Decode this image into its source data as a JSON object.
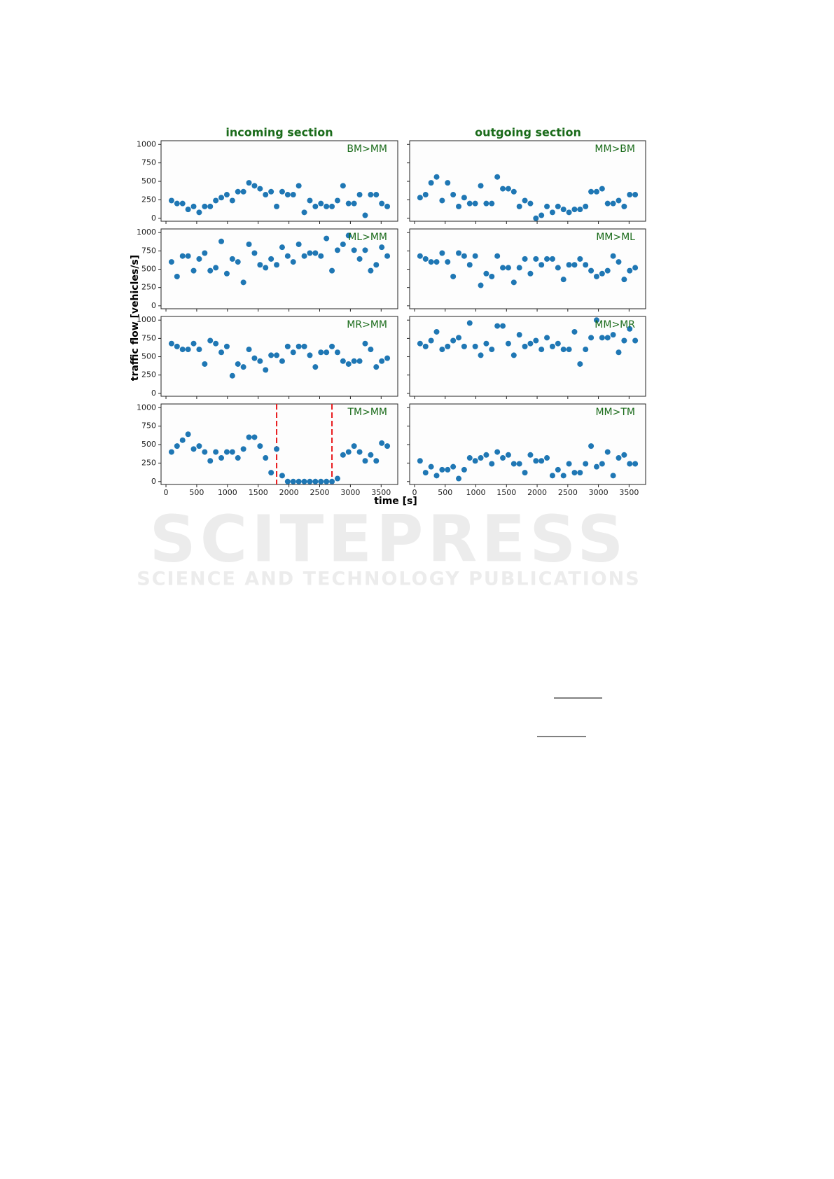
{
  "figure": {
    "title_left": "incoming section",
    "title_right": "outgoing section",
    "ylabel": "traffic flow [vehicles/s]",
    "xlabel": "time [s]",
    "title_color": "#1a6b1a"
  },
  "watermark": {
    "line1": "SCITEPRESS",
    "line2": "SCIENCE AND TECHNOLOGY PUBLICATIONS"
  },
  "chart_data": [
    {
      "type": "scatter",
      "label": "BM>MM",
      "color": "#1f77b4",
      "xlim": [
        -80,
        3770
      ],
      "ylim": [
        -40,
        1050
      ],
      "xticks": [
        0,
        500,
        1000,
        1500,
        2000,
        2500,
        3000,
        3500
      ],
      "yticks": [
        0,
        250,
        500,
        750,
        1000
      ],
      "xtick_labels": false,
      "ytick_labels": true,
      "x": [
        90,
        180,
        270,
        360,
        450,
        540,
        630,
        720,
        810,
        900,
        990,
        1080,
        1170,
        1260,
        1350,
        1440,
        1530,
        1620,
        1710,
        1800,
        1890,
        1980,
        2070,
        2160,
        2250,
        2340,
        2430,
        2520,
        2610,
        2700,
        2790,
        2880,
        2970,
        3060,
        3150,
        3240,
        3330,
        3420,
        3510,
        3600
      ],
      "values": [
        240,
        200,
        200,
        120,
        160,
        80,
        160,
        160,
        240,
        280,
        320,
        240,
        360,
        360,
        480,
        440,
        400,
        320,
        360,
        160,
        360,
        320,
        320,
        440,
        80,
        240,
        160,
        200,
        160,
        160,
        240,
        440,
        200,
        200,
        320,
        40,
        320,
        320,
        200,
        160
      ]
    },
    {
      "type": "scatter",
      "label": "MM>BM",
      "color": "#1f77b4",
      "xlim": [
        -80,
        3770
      ],
      "ylim": [
        -40,
        1050
      ],
      "xticks": [
        0,
        500,
        1000,
        1500,
        2000,
        2500,
        3000,
        3500
      ],
      "yticks": [
        0,
        250,
        500,
        750,
        1000
      ],
      "xtick_labels": false,
      "ytick_labels": false,
      "x": [
        90,
        180,
        270,
        360,
        450,
        540,
        630,
        720,
        810,
        900,
        990,
        1080,
        1170,
        1260,
        1350,
        1440,
        1530,
        1620,
        1710,
        1800,
        1890,
        1980,
        2070,
        2160,
        2250,
        2340,
        2430,
        2520,
        2610,
        2700,
        2790,
        2880,
        2970,
        3060,
        3150,
        3240,
        3330,
        3420,
        3510,
        3600
      ],
      "values": [
        280,
        320,
        480,
        560,
        240,
        480,
        320,
        160,
        280,
        200,
        200,
        440,
        200,
        200,
        560,
        400,
        400,
        360,
        160,
        240,
        200,
        0,
        40,
        160,
        80,
        160,
        120,
        80,
        120,
        120,
        160,
        360,
        360,
        400,
        200,
        200,
        240,
        160,
        320,
        320
      ]
    },
    {
      "type": "scatter",
      "label": "ML>MM",
      "color": "#1f77b4",
      "xlim": [
        -80,
        3770
      ],
      "ylim": [
        -40,
        1050
      ],
      "xticks": [
        0,
        500,
        1000,
        1500,
        2000,
        2500,
        3000,
        3500
      ],
      "yticks": [
        0,
        250,
        500,
        750,
        1000
      ],
      "xtick_labels": false,
      "ytick_labels": true,
      "x": [
        90,
        180,
        270,
        360,
        450,
        540,
        630,
        720,
        810,
        900,
        990,
        1080,
        1170,
        1260,
        1350,
        1440,
        1530,
        1620,
        1710,
        1800,
        1890,
        1980,
        2070,
        2160,
        2250,
        2340,
        2430,
        2520,
        2610,
        2700,
        2790,
        2880,
        2970,
        3060,
        3150,
        3240,
        3330,
        3420,
        3510,
        3600
      ],
      "values": [
        600,
        400,
        680,
        680,
        480,
        640,
        720,
        480,
        520,
        880,
        440,
        640,
        600,
        320,
        840,
        720,
        560,
        520,
        640,
        560,
        800,
        680,
        600,
        840,
        680,
        720,
        720,
        680,
        920,
        480,
        760,
        840,
        960,
        760,
        640,
        760,
        480,
        560,
        800,
        680
      ]
    },
    {
      "type": "scatter",
      "label": "MM>ML",
      "color": "#1f77b4",
      "xlim": [
        -80,
        3770
      ],
      "ylim": [
        -40,
        1050
      ],
      "xticks": [
        0,
        500,
        1000,
        1500,
        2000,
        2500,
        3000,
        3500
      ],
      "yticks": [
        0,
        250,
        500,
        750,
        1000
      ],
      "xtick_labels": false,
      "ytick_labels": false,
      "x": [
        90,
        180,
        270,
        360,
        450,
        540,
        630,
        720,
        810,
        900,
        990,
        1080,
        1170,
        1260,
        1350,
        1440,
        1530,
        1620,
        1710,
        1800,
        1890,
        1980,
        2070,
        2160,
        2250,
        2340,
        2430,
        2520,
        2610,
        2700,
        2790,
        2880,
        2970,
        3060,
        3150,
        3240,
        3330,
        3420,
        3510,
        3600
      ],
      "values": [
        680,
        640,
        600,
        600,
        720,
        600,
        400,
        720,
        680,
        560,
        680,
        280,
        440,
        400,
        680,
        520,
        520,
        320,
        520,
        640,
        440,
        640,
        560,
        640,
        640,
        520,
        360,
        560,
        560,
        640,
        560,
        480,
        400,
        440,
        480,
        680,
        600,
        360,
        480,
        520
      ]
    },
    {
      "type": "scatter",
      "label": "MR>MM",
      "color": "#1f77b4",
      "xlim": [
        -80,
        3770
      ],
      "ylim": [
        -40,
        1050
      ],
      "xticks": [
        0,
        500,
        1000,
        1500,
        2000,
        2500,
        3000,
        3500
      ],
      "yticks": [
        0,
        250,
        500,
        750,
        1000
      ],
      "xtick_labels": false,
      "ytick_labels": true,
      "x": [
        90,
        180,
        270,
        360,
        450,
        540,
        630,
        720,
        810,
        900,
        990,
        1080,
        1170,
        1260,
        1350,
        1440,
        1530,
        1620,
        1710,
        1800,
        1890,
        1980,
        2070,
        2160,
        2250,
        2340,
        2430,
        2520,
        2610,
        2700,
        2790,
        2880,
        2970,
        3060,
        3150,
        3240,
        3330,
        3420,
        3510,
        3600
      ],
      "values": [
        680,
        640,
        600,
        600,
        680,
        600,
        400,
        720,
        680,
        560,
        640,
        240,
        400,
        360,
        600,
        480,
        440,
        320,
        520,
        520,
        440,
        640,
        560,
        640,
        640,
        520,
        360,
        560,
        560,
        640,
        560,
        440,
        400,
        440,
        440,
        680,
        600,
        360,
        440,
        480
      ]
    },
    {
      "type": "scatter",
      "label": "MM>MR",
      "color": "#1f77b4",
      "xlim": [
        -80,
        3770
      ],
      "ylim": [
        -40,
        1050
      ],
      "xticks": [
        0,
        500,
        1000,
        1500,
        2000,
        2500,
        3000,
        3500
      ],
      "yticks": [
        0,
        250,
        500,
        750,
        1000
      ],
      "xtick_labels": false,
      "ytick_labels": false,
      "x": [
        90,
        180,
        270,
        360,
        450,
        540,
        630,
        720,
        810,
        900,
        990,
        1080,
        1170,
        1260,
        1350,
        1440,
        1530,
        1620,
        1710,
        1800,
        1890,
        1980,
        2070,
        2160,
        2250,
        2340,
        2430,
        2520,
        2610,
        2700,
        2790,
        2880,
        2970,
        3060,
        3150,
        3240,
        3330,
        3420,
        3510,
        3600
      ],
      "values": [
        680,
        640,
        720,
        840,
        600,
        640,
        720,
        760,
        640,
        960,
        640,
        520,
        680,
        600,
        920,
        920,
        680,
        520,
        800,
        640,
        680,
        720,
        600,
        760,
        640,
        680,
        600,
        600,
        840,
        400,
        600,
        760,
        1000,
        760,
        760,
        800,
        560,
        720,
        880,
        720
      ]
    },
    {
      "type": "scatter",
      "label": "TM>MM",
      "color": "#1f77b4",
      "xlim": [
        -80,
        3770
      ],
      "ylim": [
        -40,
        1050
      ],
      "xticks": [
        0,
        500,
        1000,
        1500,
        2000,
        2500,
        3000,
        3500
      ],
      "yticks": [
        0,
        250,
        500,
        750,
        1000
      ],
      "xtick_labels": true,
      "ytick_labels": true,
      "vlines": [
        1800,
        2700
      ],
      "vline_color": "#e8191c",
      "x": [
        90,
        180,
        270,
        360,
        450,
        540,
        630,
        720,
        810,
        900,
        990,
        1080,
        1170,
        1260,
        1350,
        1440,
        1530,
        1620,
        1710,
        1800,
        1890,
        1980,
        2070,
        2160,
        2250,
        2340,
        2430,
        2520,
        2610,
        2700,
        2790,
        2880,
        2970,
        3060,
        3150,
        3240,
        3330,
        3420,
        3510,
        3600
      ],
      "values": [
        400,
        480,
        560,
        640,
        440,
        480,
        400,
        280,
        400,
        320,
        400,
        400,
        320,
        440,
        600,
        600,
        480,
        320,
        120,
        440,
        80,
        0,
        0,
        0,
        0,
        0,
        0,
        0,
        0,
        0,
        40,
        360,
        400,
        480,
        400,
        280,
        360,
        280,
        520,
        480
      ]
    },
    {
      "type": "scatter",
      "label": "MM>TM",
      "color": "#1f77b4",
      "xlim": [
        -80,
        3770
      ],
      "ylim": [
        -40,
        1050
      ],
      "xticks": [
        0,
        500,
        1000,
        1500,
        2000,
        2500,
        3000,
        3500
      ],
      "yticks": [
        0,
        250,
        500,
        750,
        1000
      ],
      "xtick_labels": true,
      "ytick_labels": false,
      "x": [
        90,
        180,
        270,
        360,
        450,
        540,
        630,
        720,
        810,
        900,
        990,
        1080,
        1170,
        1260,
        1350,
        1440,
        1530,
        1620,
        1710,
        1800,
        1890,
        1980,
        2070,
        2160,
        2250,
        2340,
        2430,
        2520,
        2610,
        2700,
        2790,
        2880,
        2970,
        3060,
        3150,
        3240,
        3330,
        3420,
        3510,
        3600
      ],
      "values": [
        280,
        120,
        200,
        80,
        160,
        160,
        200,
        40,
        160,
        320,
        280,
        320,
        360,
        240,
        400,
        320,
        360,
        240,
        240,
        120,
        360,
        280,
        280,
        320,
        80,
        160,
        80,
        240,
        120,
        120,
        240,
        480,
        200,
        240,
        400,
        80,
        320,
        360,
        240,
        240
      ]
    }
  ]
}
